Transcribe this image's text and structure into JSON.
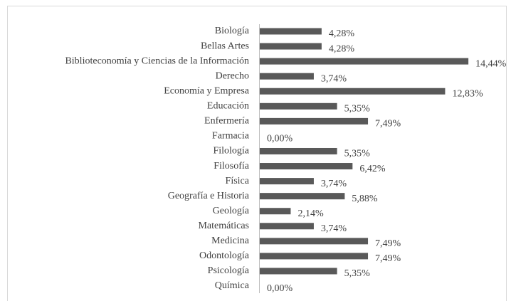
{
  "chart_data": {
    "type": "bar",
    "orientation": "horizontal",
    "categories": [
      "Biología",
      "Bellas Artes",
      "Biblioteconomía y Ciencias de la Información",
      "Derecho",
      "Economía y Empresa",
      "Educación",
      "Enfermería",
      "Farmacia",
      "Filología",
      "Filosofía",
      "Física",
      "Geografía e Historia",
      "Geología",
      "Matemáticas",
      "Medicina",
      "Odontología",
      "Psicología",
      "Química"
    ],
    "values": [
      4.28,
      4.28,
      14.44,
      3.74,
      12.83,
      5.35,
      7.49,
      0,
      5.35,
      6.42,
      3.74,
      5.88,
      2.14,
      3.74,
      7.49,
      7.49,
      5.35,
      0
    ],
    "value_labels": [
      "4,28%",
      "4,28%",
      "14,44%",
      "3,74%",
      "12,83%",
      "5,35%",
      "7,49%",
      "0,00%",
      "5,35%",
      "6,42%",
      "3,74%",
      "5,88%",
      "2,14%",
      "3,74%",
      "7,49%",
      "7,49%",
      "5,35%",
      "0,00%"
    ],
    "color": "#595959"
  }
}
